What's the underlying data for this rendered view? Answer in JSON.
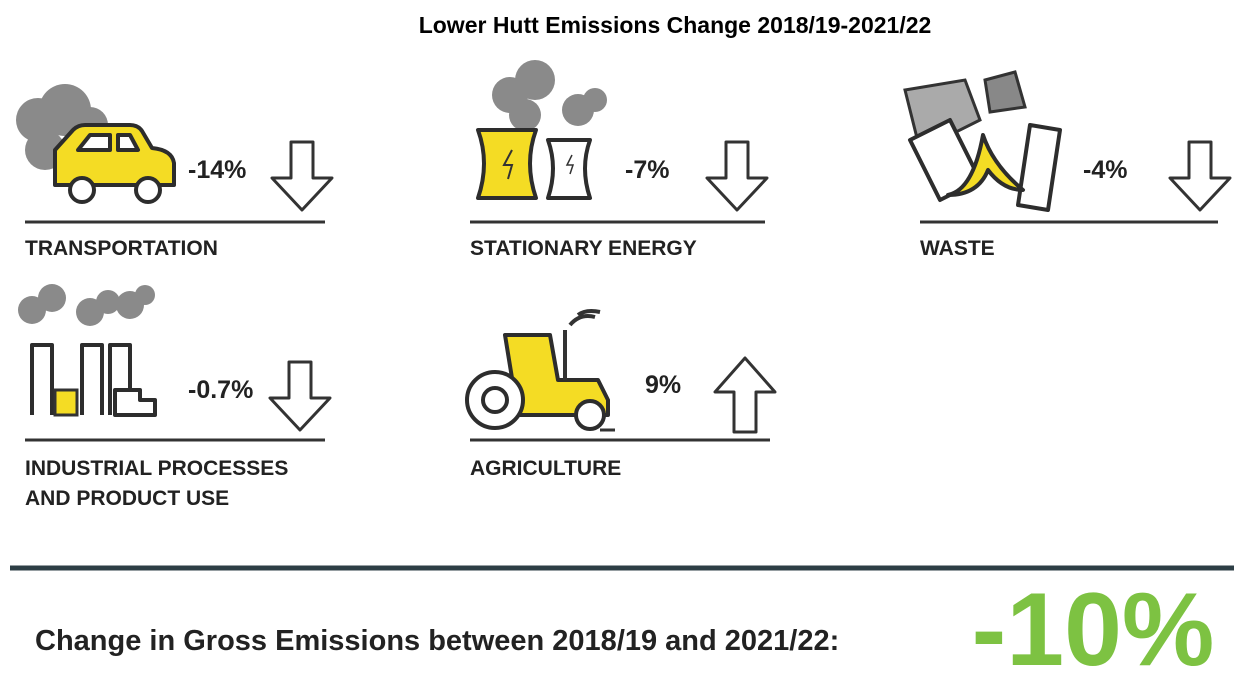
{
  "title": "Lower Hutt Emissions Change 2018/19-2021/22",
  "sectors": [
    {
      "label": [
        "TRANSPORTATION"
      ],
      "change": "-14%"
    },
    {
      "label": [
        "STATIONARY ENERGY"
      ],
      "change": "-7%"
    },
    {
      "label": [
        "WASTE"
      ],
      "change": "-4%"
    },
    {
      "label": [
        "INDUSTRIAL PROCESSES",
        "AND PRODUCT USE"
      ],
      "change": "-0.7%"
    },
    {
      "label": [
        "AGRICULTURE"
      ],
      "change": "9%"
    }
  ],
  "total": {
    "label": "Change in Gross Emissions between 2018/19 and 2021/22:",
    "value": "-10%"
  }
}
